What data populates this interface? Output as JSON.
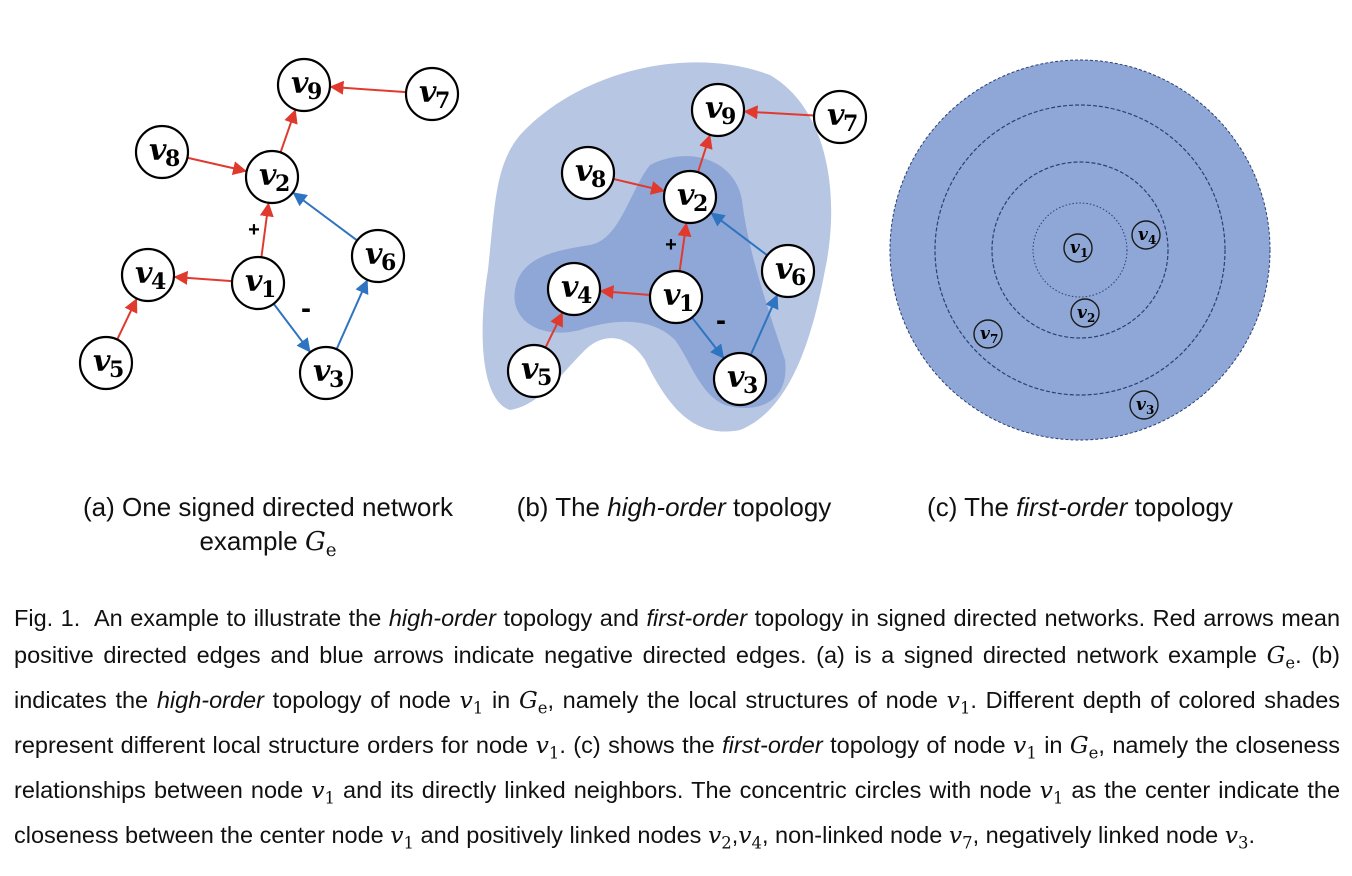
{
  "figure": {
    "panels": [
      {
        "id": "a",
        "nodes": [
          {
            "id": "v1",
            "name": "v",
            "sub": "1"
          },
          {
            "id": "v2",
            "name": "v",
            "sub": "2"
          },
          {
            "id": "v3",
            "name": "v",
            "sub": "3"
          },
          {
            "id": "v4",
            "name": "v",
            "sub": "4"
          },
          {
            "id": "v5",
            "name": "v",
            "sub": "5"
          },
          {
            "id": "v6",
            "name": "v",
            "sub": "6"
          },
          {
            "id": "v7",
            "name": "v",
            "sub": "7"
          },
          {
            "id": "v8",
            "name": "v",
            "sub": "8"
          },
          {
            "id": "v9",
            "name": "v",
            "sub": "9"
          }
        ],
        "edges": [
          {
            "from": "v1",
            "to": "v2",
            "sign": "positive"
          },
          {
            "from": "v1",
            "to": "v4",
            "sign": "positive"
          },
          {
            "from": "v5",
            "to": "v4",
            "sign": "positive"
          },
          {
            "from": "v8",
            "to": "v2",
            "sign": "positive"
          },
          {
            "from": "v2",
            "to": "v9",
            "sign": "positive"
          },
          {
            "from": "v7",
            "to": "v9",
            "sign": "positive"
          },
          {
            "from": "v1",
            "to": "v3",
            "sign": "negative"
          },
          {
            "from": "v3",
            "to": "v6",
            "sign": "negative"
          },
          {
            "from": "v6",
            "to": "v2",
            "sign": "negative"
          }
        ],
        "sign_labels": {
          "positive": "+",
          "negative": "-"
        },
        "caption_prefix": "(a) One signed directed network",
        "caption_line2": "example",
        "caption_symbol": "G",
        "caption_symbol_sub": "e"
      },
      {
        "id": "b",
        "caption_prefix": "(b) The",
        "caption_emph": "high-order",
        "caption_suffix": "topology",
        "shade_colors": {
          "outer": "#b7c6e3",
          "inner": "#8fa7d6"
        }
      },
      {
        "id": "c",
        "small_nodes": [
          {
            "id": "v1",
            "name": "v",
            "sub": "1"
          },
          {
            "id": "v4",
            "name": "v",
            "sub": "4"
          },
          {
            "id": "v2",
            "name": "v",
            "sub": "2"
          },
          {
            "id": "v7",
            "name": "v",
            "sub": "7"
          },
          {
            "id": "v3",
            "name": "v",
            "sub": "3"
          }
        ],
        "caption_prefix": "(c) The",
        "caption_emph": "first-order",
        "caption_suffix": "topology",
        "disk_color": "#8fa7d6",
        "ring_color": "#2b3f75"
      }
    ],
    "colors": {
      "positive_edge": "#e03a2f",
      "negative_edge": "#2f74c0"
    }
  },
  "caption": {
    "label": "Fig. 1.",
    "s1_a": "An example to illustrate the",
    "s1_em1": "high-order",
    "s1_b": "topology and",
    "s1_em2": "first-order",
    "s1_c": "topology in signed directed networks.",
    "s2": "Red arrows mean positive directed edges and blue arrows indicate negative directed edges.",
    "s3_a": "(a) is a signed directed network example",
    "s3_b": ".",
    "s4_a": "(b) indicates the",
    "s4_em": "high-order",
    "s4_b": "topology of node",
    "s4_c": "in",
    "s4_d": ", namely the local structures of node",
    "s4_e": ".",
    "s5_a": "Different depth of colored shades represent different local structure orders for node",
    "s5_b": ".",
    "s6_a": "(c) shows the",
    "s6_em": "first-order",
    "s6_b": "topology of node",
    "s6_c": "in",
    "s6_d": ", namely the closeness relationships between node",
    "s6_e": "and its directly linked neighbors.",
    "s7_a": "The concentric circles with node",
    "s7_b": "as the center indicate the closeness between the center node",
    "s7_c": "and positively linked nodes",
    "s7_d": ", non-linked node",
    "s7_e": ", negatively linked node",
    "s7_f": ".",
    "sym_v": "v",
    "sym_G": "G",
    "sub_e": "e",
    "sub_1": "1",
    "sub_2": "2",
    "sub_3": "3",
    "sub_4": "4",
    "sub_7": "7",
    "comma": ","
  }
}
